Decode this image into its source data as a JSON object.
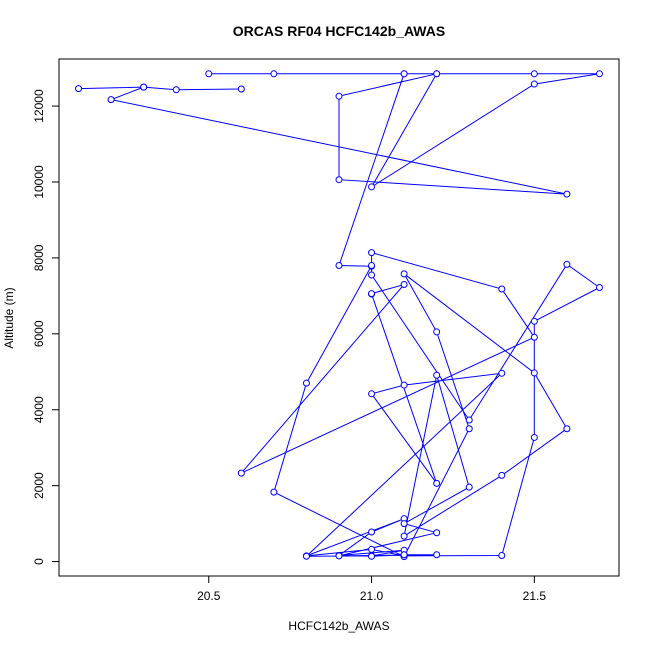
{
  "chart_data": {
    "type": "line",
    "title": "ORCAS RF04 HCFC142b_AWAS",
    "xlabel": "HCFC142b_AWAS",
    "ylabel": "Altitude (m)",
    "xlim": [
      20.04,
      21.76
    ],
    "ylim": [
      -380,
      13240
    ],
    "xticks": [
      20.5,
      21.0,
      21.5
    ],
    "xtick_labels": [
      "20.5",
      "21.0",
      "21.5"
    ],
    "yticks": [
      0,
      2000,
      4000,
      6000,
      8000,
      10000,
      12000
    ],
    "ytick_labels": [
      "0",
      "2000",
      "4000",
      "6000",
      "8000",
      "10000",
      "12000"
    ],
    "grid": false,
    "marker": "open-circle",
    "series_color": "#0000ff",
    "series": [
      {
        "x": [
          20.6,
          20.4,
          20.3,
          20.1,
          20.3,
          20.2,
          21.6,
          20.9,
          20.9,
          21.2,
          20.5,
          21.1,
          21.7,
          21.5,
          21.0,
          21.2,
          20.7,
          21.5,
          21.1,
          20.9,
          21.0,
          21.0,
          21.3,
          21.6,
          21.7,
          21.5,
          21.5,
          21.4,
          21.1,
          21.1,
          21.0,
          20.8,
          21.1,
          21.0,
          20.9,
          21.1,
          21.0,
          20.8,
          21.4,
          21.1,
          21.0,
          21.2,
          21.0,
          21.0,
          21.1,
          20.6,
          21.5,
          21.4,
          21.0,
          21.0,
          20.8,
          20.7,
          21.1,
          21.3,
          21.2,
          21.1,
          21.5,
          21.6,
          21.4,
          21.1,
          21.2,
          21.3,
          21.1,
          21.2,
          20.9,
          21.2,
          21.1,
          21.0,
          21.1
        ],
        "y": [
          12450,
          12430,
          12500,
          12460,
          12500,
          12170,
          9680,
          10060,
          12260,
          12850,
          12850,
          12850,
          12850,
          12580,
          9870,
          12850,
          12850,
          12850,
          12850,
          7800,
          7780,
          7550,
          3730,
          7830,
          7220,
          6330,
          3270,
          160,
          150,
          150,
          320,
          150,
          1130,
          780,
          160,
          300,
          150,
          140,
          4960,
          4650,
          4420,
          2060,
          7050,
          7060,
          7300,
          2330,
          5910,
          7180,
          8140,
          7800,
          4700,
          1830,
          130,
          3500,
          6050,
          7580,
          4970,
          3500,
          2270,
          670,
          4910,
          1960,
          1000,
          760,
          150,
          180,
          180,
          140,
          180
        ]
      }
    ]
  }
}
